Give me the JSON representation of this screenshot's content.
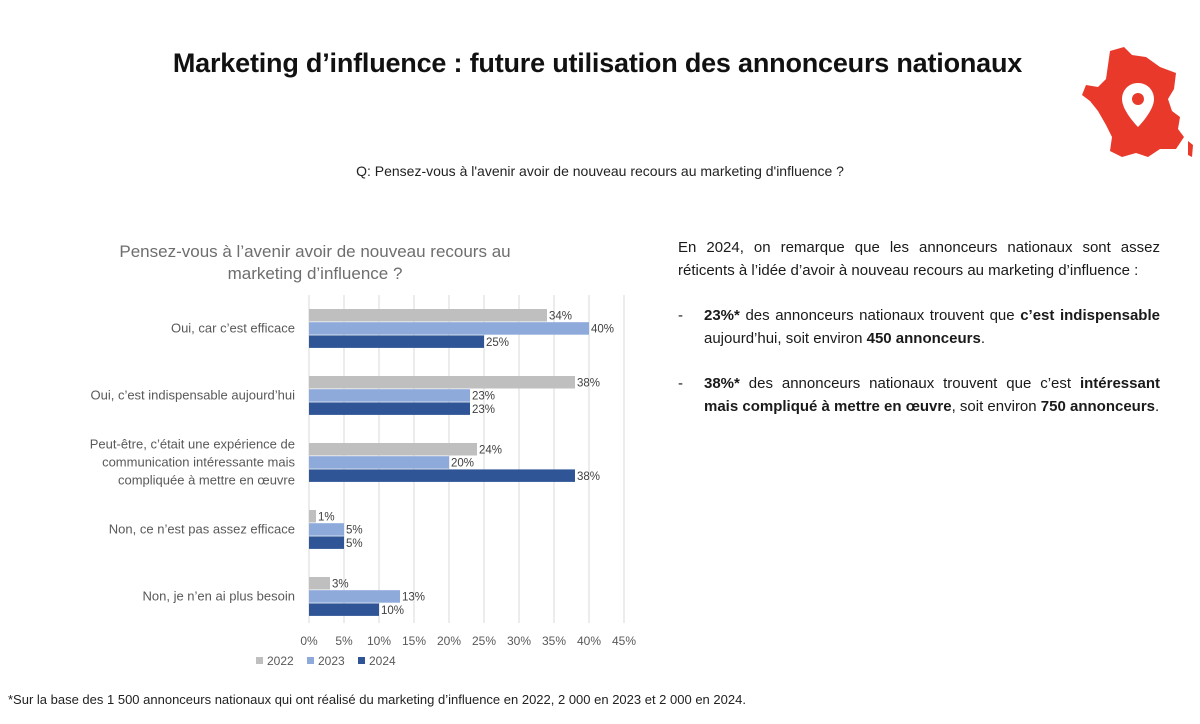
{
  "page": {
    "title": "Marketing d’influence : future utilisation des annonceurs nationaux",
    "question": "Q: Pensez-vous à l'avenir avoir de nouveau recours au marketing d'influence ?",
    "footnote": "*Sur la base des 1 500 annonceurs nationaux qui ont réalisé du marketing d’influence en 2022, 2 000 en 2023 et 2 000 en 2024."
  },
  "icons": {
    "map": "france-map-location-pin-icon",
    "map_color": "#e8392b"
  },
  "panel": {
    "intro": "En 2024, on remarque que les annonceurs nationaux sont assez réticents à l’idée d’avoir à nouveau recours au marketing d’influence :",
    "items": [
      {
        "dash": "-",
        "parts": [
          {
            "text": "23%*",
            "bold": true
          },
          {
            "text": " des annonceurs nationaux trouvent que ",
            "bold": false
          },
          {
            "text": "c’est indispensable",
            "bold": true
          },
          {
            "text": " aujourd’hui, soit environ ",
            "bold": false
          },
          {
            "text": "450 annonceurs",
            "bold": true
          },
          {
            "text": ".",
            "bold": false
          }
        ]
      },
      {
        "dash": "-",
        "parts": [
          {
            "text": "38%*",
            "bold": true
          },
          {
            "text": " des annonceurs nationaux trouvent que c’est ",
            "bold": false
          },
          {
            "text": "intéressant mais compliqué à mettre en œuvre",
            "bold": true
          },
          {
            "text": ", soit environ ",
            "bold": false
          },
          {
            "text": "750 annonceurs",
            "bold": true
          },
          {
            "text": ".",
            "bold": false
          }
        ]
      }
    ]
  },
  "chart_data": {
    "type": "bar",
    "orientation": "horizontal",
    "title": "Pensez-vous à l’avenir avoir de nouveau recours au marketing d’influence ?",
    "categories": [
      [
        "Oui, car c’est efficace"
      ],
      [
        "Oui, c’est indispensable aujourd’hui"
      ],
      [
        "Peut-être, c’était une expérience de",
        "communication intéressante mais",
        "compliquée à mettre en œuvre"
      ],
      [
        "Non, ce n’est pas assez efficace"
      ],
      [
        "Non, je n’en ai plus besoin"
      ]
    ],
    "series": [
      {
        "name": "2022",
        "color": "#bfbfbf",
        "values": [
          34,
          38,
          24,
          1,
          3
        ]
      },
      {
        "name": "2023",
        "color": "#8eaadb",
        "values": [
          40,
          23,
          20,
          5,
          13
        ]
      },
      {
        "name": "2024",
        "color": "#2f5597",
        "values": [
          25,
          23,
          38,
          5,
          10
        ]
      }
    ],
    "xlim": [
      0,
      45
    ],
    "xticks": [
      0,
      5,
      10,
      15,
      20,
      25,
      30,
      35,
      40,
      45
    ],
    "tick_suffix": "%",
    "value_suffix": "%",
    "grid": true,
    "legend_position": "bottom-left"
  }
}
